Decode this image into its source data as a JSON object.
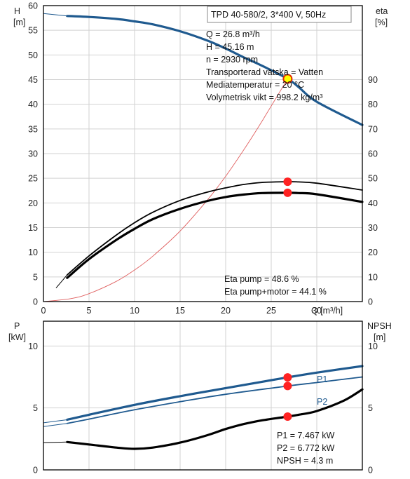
{
  "chart_data": [
    {
      "type": "line",
      "title": "TPD 40-580/2, 3*400 V, 50Hz",
      "xlabel": "Q [m³/h]",
      "ylabel_left_line1": "H",
      "ylabel_left_line2": "[m]",
      "ylabel_right_line1": "eta",
      "ylabel_right_line2": "[%]",
      "xlim": [
        0,
        35
      ],
      "ylim_left": [
        0,
        60
      ],
      "ylim_right": [
        0,
        120
      ],
      "x_ticks": [
        "0",
        "5",
        "10",
        "15",
        "20",
        "25",
        "30"
      ],
      "y_ticks_left": [
        "0",
        "5",
        "10",
        "15",
        "20",
        "25",
        "30",
        "35",
        "40",
        "45",
        "50",
        "55",
        "60"
      ],
      "y_ticks_right": [
        "0",
        "10",
        "20",
        "30",
        "40",
        "50",
        "60",
        "70",
        "80",
        "90"
      ],
      "grid": true,
      "duty_point_info": [
        "Q = 26.8 m³/h",
        "H = 45.16 m",
        "n = 2930 rpm",
        "Transporterad vätska = Vatten",
        "Mediatemperatur = 20 °C",
        "Volymetrisk vikt = 998.2 kg/m³"
      ],
      "efficiency_info": [
        "Eta pump = 48.6 %",
        "Eta pump+motor = 44.1 %"
      ],
      "series": [
        {
          "role": "head",
          "axis": "left",
          "color": "#1f5a8f",
          "x": [
            0,
            2.6,
            5,
            8,
            10,
            12,
            15,
            18,
            20,
            22,
            24,
            26.8,
            28,
            30,
            35
          ],
          "y": [
            58.4,
            57.9,
            57.7,
            57.3,
            56.8,
            56.2,
            54.8,
            52.9,
            51.3,
            49.5,
            47.8,
            45.16,
            43.5,
            40.5,
            35.8
          ]
        },
        {
          "role": "efficiency_pump",
          "axis": "right",
          "color": "#000000",
          "x": [
            1.4,
            2.6,
            5,
            8,
            10,
            12,
            15,
            18,
            20,
            22,
            24,
            26.8,
            28,
            30,
            35
          ],
          "y": [
            5.6,
            10.8,
            18.5,
            27,
            32,
            36.2,
            41,
            44.4,
            46.1,
            47.5,
            48.3,
            48.6,
            48.5,
            48,
            45.2
          ]
        },
        {
          "role": "efficiency_pump_motor",
          "axis": "right",
          "color": "#000000",
          "x": [
            2.6,
            5,
            8,
            10,
            12,
            15,
            18,
            20,
            22,
            24,
            26.8,
            28,
            30,
            35
          ],
          "y": [
            9.6,
            17.2,
            25,
            29.5,
            33.4,
            37.6,
            40.8,
            42.4,
            43.4,
            44,
            44.1,
            44,
            43.5,
            40.4
          ]
        },
        {
          "role": "system_curve",
          "axis": "left",
          "color": "#e06060",
          "x": [
            0,
            3,
            5,
            8,
            10,
            12,
            15,
            18,
            20,
            22,
            24,
            26.8
          ],
          "y": [
            0,
            0.6,
            1.6,
            4.1,
            6.4,
            9.2,
            14.3,
            20.6,
            25.4,
            30.8,
            36.6,
            45.16
          ]
        }
      ],
      "markers": [
        {
          "label": "duty point",
          "x": 26.8,
          "y": 45.16,
          "axis": "left",
          "fill": "#ffff00",
          "stroke": "#e03000"
        },
        {
          "label": "eta pump",
          "x": 26.8,
          "y": 48.6,
          "axis": "right",
          "fill": "#ff2222",
          "stroke": "#ff2222"
        },
        {
          "label": "eta pump+motor",
          "x": 26.8,
          "y": 44.1,
          "axis": "right",
          "fill": "#ff2222",
          "stroke": "#ff2222"
        }
      ]
    },
    {
      "type": "line",
      "xlim": [
        0,
        35
      ],
      "ylabel_left_line1": "P",
      "ylabel_left_line2": "[kW]",
      "ylabel_right_line1": "NPSH",
      "ylabel_right_line2": "[m]",
      "ylim_left": [
        0,
        12
      ],
      "ylim_right": [
        0,
        12
      ],
      "y_ticks_left": [
        "0",
        "5",
        "10"
      ],
      "y_ticks_right": [
        "0",
        "5",
        "10"
      ],
      "grid": true,
      "value_info": [
        "P1 = 7.467 kW",
        "P2 = 6.772 kW",
        "NPSH = 4.3 m"
      ],
      "series": [
        {
          "name": "P1",
          "axis": "left",
          "color": "#1f5a8f",
          "x": [
            0,
            2.6,
            5,
            10,
            15,
            20,
            26.8,
            30,
            35
          ],
          "y": [
            3.8,
            4.05,
            4.45,
            5.25,
            5.95,
            6.6,
            7.467,
            7.85,
            8.38
          ]
        },
        {
          "name": "P2",
          "axis": "left",
          "color": "#1f5a8f",
          "x": [
            0,
            2.6,
            5,
            10,
            15,
            20,
            26.8,
            30,
            35
          ],
          "y": [
            3.5,
            3.75,
            4.1,
            4.85,
            5.5,
            6.1,
            6.772,
            7.05,
            7.5
          ]
        },
        {
          "role": "npsh",
          "axis": "right",
          "color": "#000000",
          "x": [
            0,
            2.6,
            5,
            8,
            10,
            12,
            15,
            18,
            20,
            22,
            24,
            26.8,
            28,
            30,
            33,
            35
          ],
          "y": [
            2.2,
            2.25,
            2.05,
            1.8,
            1.7,
            1.8,
            2.2,
            2.8,
            3.3,
            3.7,
            4.0,
            4.3,
            4.45,
            4.75,
            5.6,
            6.5
          ]
        }
      ],
      "markers": [
        {
          "label": "P1",
          "x": 26.8,
          "y": 7.467,
          "axis": "left",
          "fill": "#ff2222"
        },
        {
          "label": "P2",
          "x": 26.8,
          "y": 6.772,
          "axis": "left",
          "fill": "#ff2222"
        },
        {
          "label": "NPSH",
          "x": 26.8,
          "y": 4.3,
          "axis": "right",
          "fill": "#ff2222"
        }
      ]
    }
  ]
}
